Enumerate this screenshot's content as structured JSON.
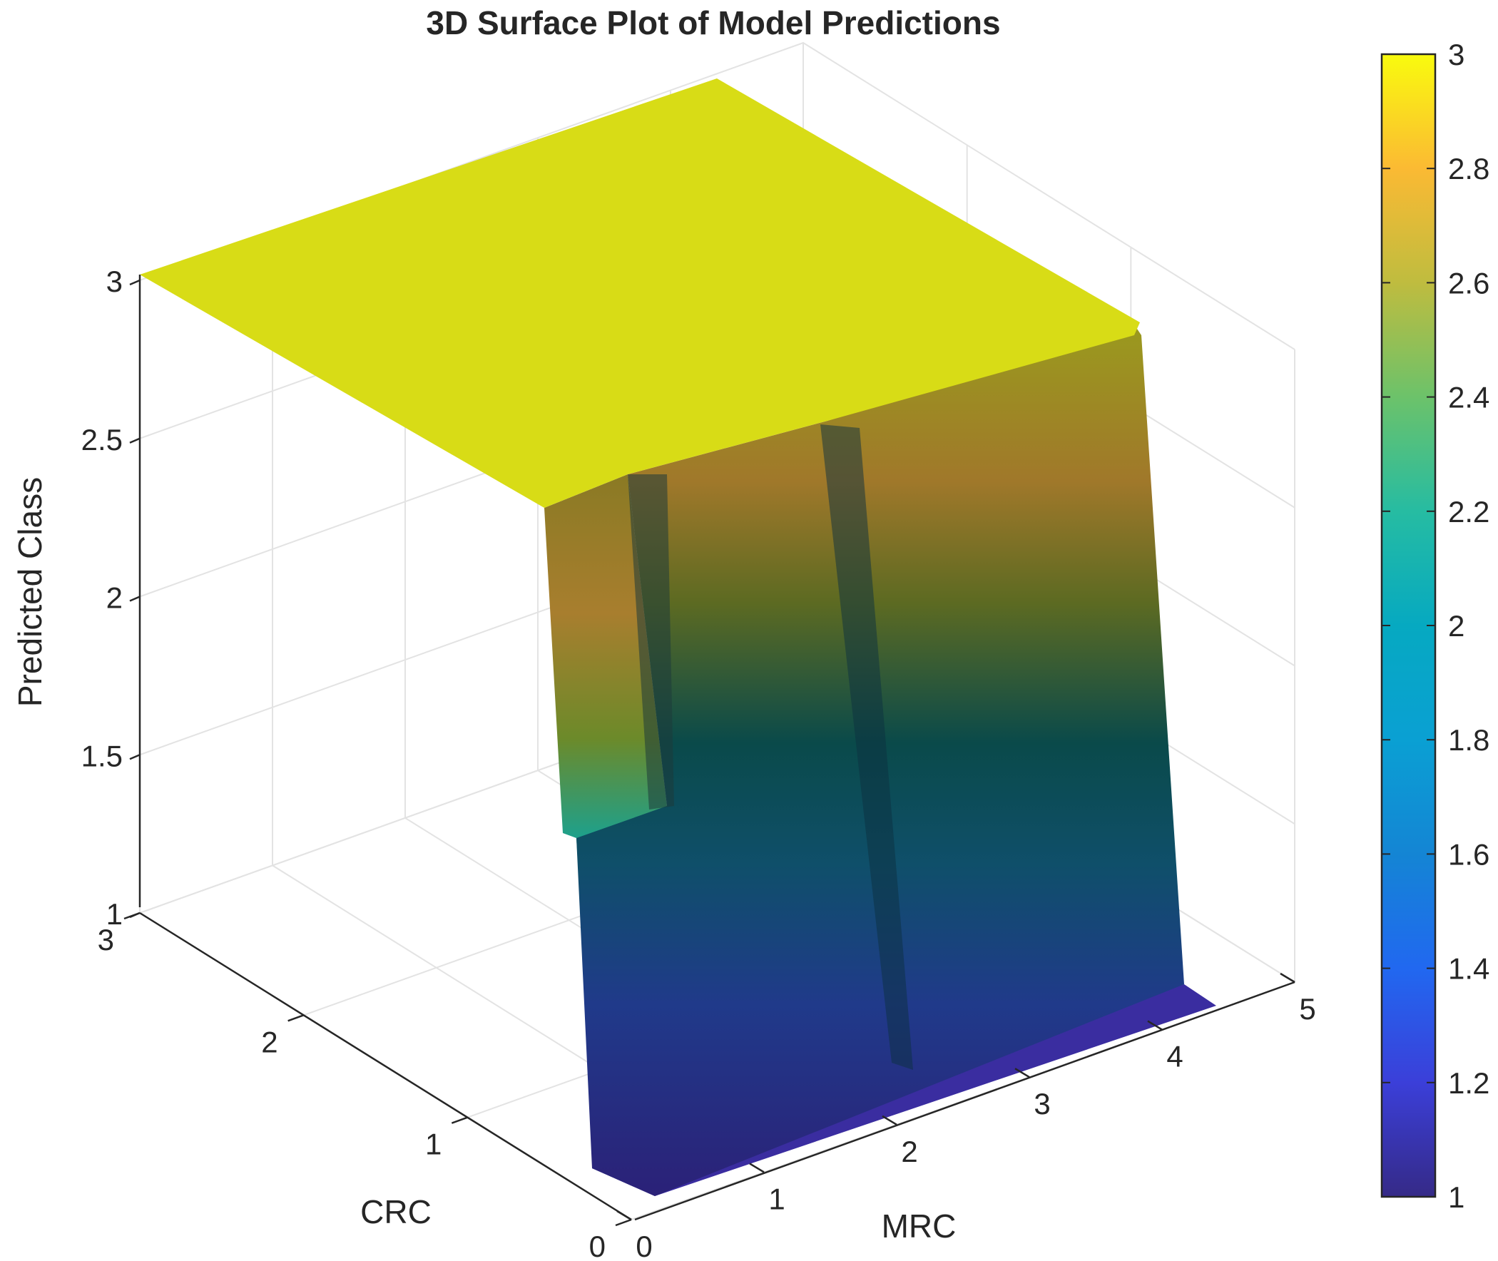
{
  "chart_data": {
    "type": "surface",
    "title": "3D Surface Plot of Model Predictions",
    "xlabel": "MRC",
    "ylabel": "CRC",
    "zlabel": "Predicted Class",
    "xlim": [
      0,
      5
    ],
    "ylim": [
      0,
      3
    ],
    "zlim": [
      1,
      3
    ],
    "x_ticks": [
      "0",
      "1",
      "2",
      "3",
      "4",
      "5"
    ],
    "y_ticks": [
      "0",
      "1",
      "2",
      "3"
    ],
    "z_ticks": [
      "1",
      "1.5",
      "2",
      "2.5",
      "3"
    ],
    "colorbar": {
      "colormap": "parula",
      "limits": [
        1,
        3
      ],
      "ticks": [
        "1",
        "1.2",
        "1.4",
        "1.6",
        "1.8",
        "2",
        "2.2",
        "2.4",
        "2.6",
        "2.8",
        "3"
      ]
    },
    "grid": true,
    "surface": {
      "description_regions": [
        {
          "region": "CRC < 0.2",
          "predicted_class": 1
        },
        {
          "region": "CRC > 0.3",
          "predicted_class": 3
        }
      ],
      "transition_crc": [
        0.2,
        0.3
      ]
    }
  },
  "colors": {
    "parula_low": "#352a87",
    "parula_mid": "#12beb9",
    "parula_high": "#f9fb0e",
    "surface_top": "#d8dc16"
  }
}
